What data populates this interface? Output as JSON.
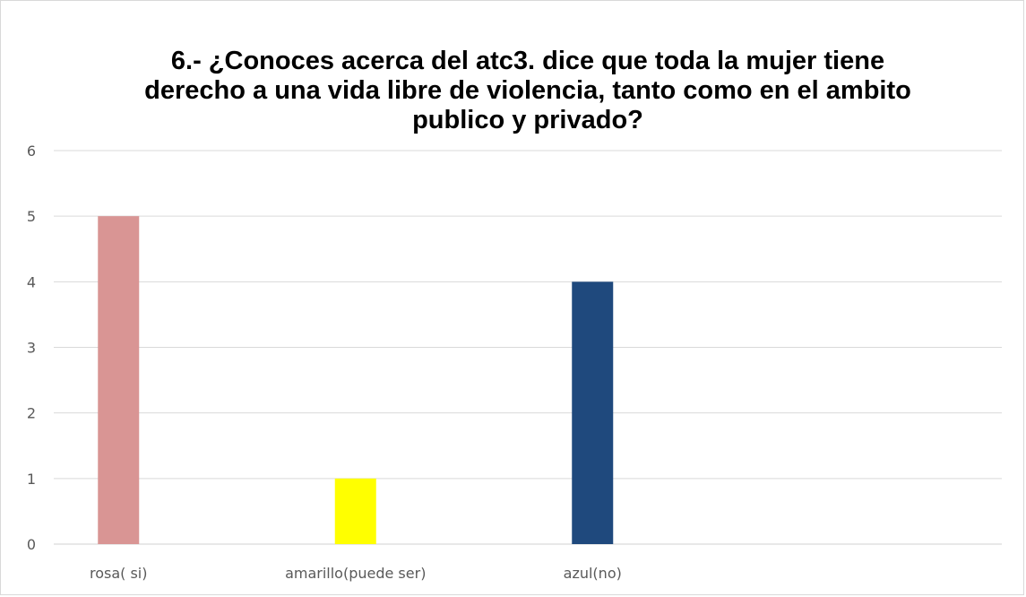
{
  "chart_data": {
    "type": "bar",
    "title_lines": [
      "6.- ¿Conoces acerca del atc3. dice que toda la mujer tiene",
      "derecho a una vida libre de violencia, tanto como en el ambito",
      "publico y privado?"
    ],
    "categories": [
      "rosa( si)",
      "amarillo(puede ser)",
      "azul(no)",
      ""
    ],
    "values": [
      5,
      1,
      4,
      0
    ],
    "bar_colors": [
      "#d99594",
      "#ffff00",
      "#1f497d",
      "#ffffff"
    ],
    "y_ticks": [
      "0",
      "1",
      "2",
      "3",
      "4",
      "5",
      "6"
    ],
    "ylim": [
      0,
      6
    ],
    "grid": true,
    "gridline_color": "#d9d9d9",
    "legend": "none"
  }
}
